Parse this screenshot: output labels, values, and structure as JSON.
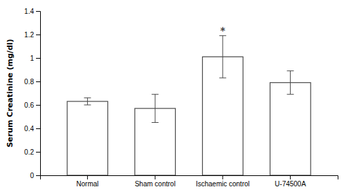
{
  "chart_data": {
    "type": "bar",
    "categories": [
      "Normal",
      "Sham control",
      "Ischaemic control",
      "U-74500A"
    ],
    "values": [
      0.63,
      0.57,
      1.01,
      0.79
    ],
    "errors": [
      0.03,
      0.12,
      0.18,
      0.1
    ],
    "color": "#ffffff",
    "ylabel": "Serum Creatinine (mg/dl)",
    "ylim": [
      0,
      1.4
    ],
    "yticks": [
      0,
      0.2,
      0.4,
      0.6,
      0.8,
      1.0,
      1.2,
      1.4
    ],
    "annotations": [
      {
        "text": "*",
        "x": "Ischaemic control"
      }
    ],
    "grid": false
  }
}
